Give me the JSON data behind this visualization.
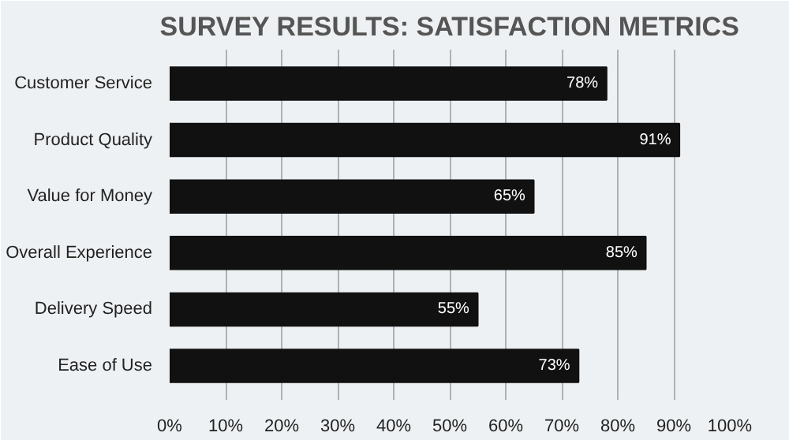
{
  "chart_data": {
    "type": "bar",
    "orientation": "horizontal",
    "title": "SURVEY RESULTS: SATISFACTION METRICS",
    "categories": [
      "Customer Service",
      "Product Quality",
      "Value for Money",
      "Overall Experience",
      "Delivery Speed",
      "Ease of Use"
    ],
    "values": [
      78,
      91,
      65,
      85,
      55,
      73
    ],
    "value_labels": [
      "78%",
      "91%",
      "65%",
      "85%",
      "55%",
      "73%"
    ],
    "color": "#111111",
    "xlim": [
      0,
      100
    ],
    "xticks": [
      {
        "value": 0,
        "label": "0%"
      },
      {
        "value": 10,
        "label": "10%"
      },
      {
        "value": 20,
        "label": "20%"
      },
      {
        "value": 30,
        "label": "30%"
      },
      {
        "value": 40,
        "label": "40%"
      },
      {
        "value": 50,
        "label": "50%"
      },
      {
        "value": 60,
        "label": "60%"
      },
      {
        "value": 70,
        "label": "70%"
      },
      {
        "value": 80,
        "label": "80%"
      },
      {
        "value": 90,
        "label": "90%"
      },
      {
        "value": 100,
        "label": "100%"
      }
    ],
    "grid": "x"
  }
}
